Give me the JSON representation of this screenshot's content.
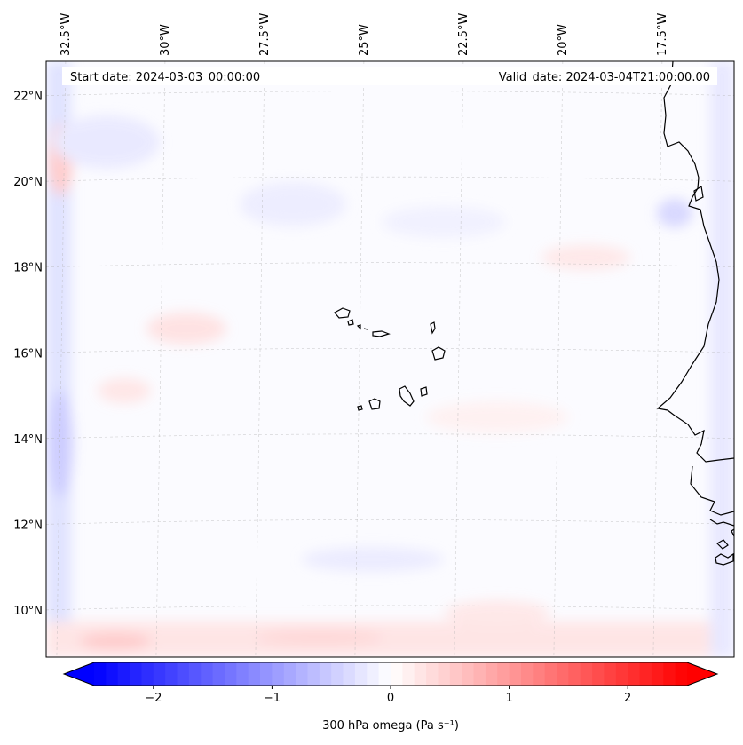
{
  "map": {
    "start_label": "Start date: 2024-03-03_00:00:00",
    "valid_label": "Valid_date: 2024-03-04T21:00:00.00",
    "lon_ticks": [
      "32.5°W",
      "30°W",
      "27.5°W",
      "25°W",
      "22.5°W",
      "20°W",
      "17.5°W"
    ],
    "lat_ticks": [
      "22°N",
      "20°N",
      "18°N",
      "16°N",
      "14°N",
      "12°N",
      "10°N"
    ],
    "lon_values": [
      -32.5,
      -30,
      -27.5,
      -25,
      -22.5,
      -20,
      -17.5
    ],
    "lat_values": [
      22,
      20,
      18,
      16,
      14,
      12,
      10
    ],
    "lon_range": [
      -32.9,
      -15.6
    ],
    "lat_range": [
      8.9,
      22.8
    ]
  },
  "colorbar": {
    "label": "300 hPa omega (Pa s⁻¹)",
    "ticks": [
      "−2",
      "−1",
      "0",
      "1",
      "2"
    ],
    "tick_values": [
      -2,
      -1,
      0,
      1,
      2
    ],
    "range": [
      -2.5,
      2.5
    ],
    "extend": "both",
    "colormap": "bwr",
    "colors": {
      "low": "#0000ff",
      "mid": "#ffffff",
      "high": "#ff0000"
    }
  },
  "colors": {
    "coastline": "#000000",
    "gridline": "#b0b0b0"
  }
}
